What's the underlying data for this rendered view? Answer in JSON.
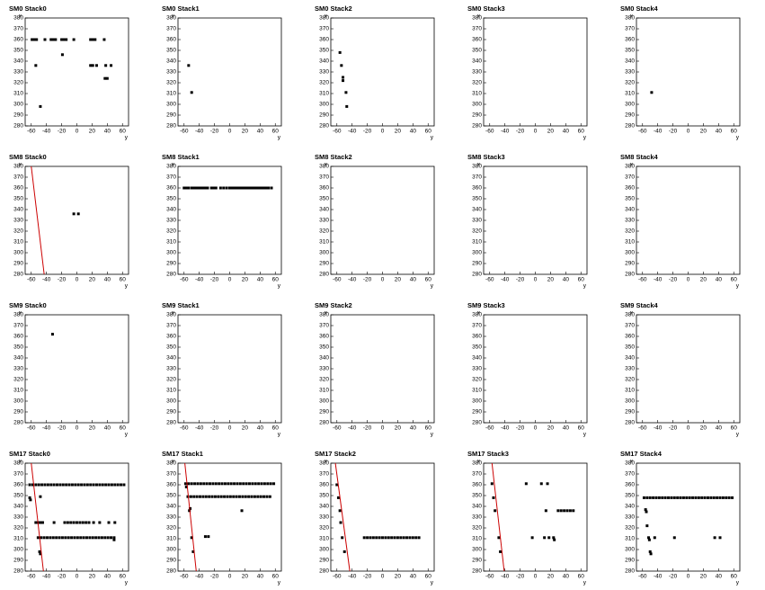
{
  "chart_data": [
    {
      "type": "scatter",
      "title": "SM0 Stack0",
      "x_label": "y",
      "y_label": "x",
      "xlim": [
        -68,
        68
      ],
      "ylim": [
        280,
        380
      ],
      "xticks": [
        -60,
        -40,
        -20,
        0,
        20,
        40,
        60
      ],
      "yticks": [
        280,
        290,
        300,
        310,
        320,
        330,
        340,
        350,
        360,
        370,
        380
      ],
      "color": "#000000",
      "x": [
        -59,
        -56,
        -53,
        -42,
        -34,
        -31,
        -28,
        -20,
        -17,
        -14,
        -4,
        18,
        21,
        24,
        36,
        -19,
        -54,
        18,
        21,
        26,
        38,
        45,
        37,
        40,
        -48
      ],
      "y": [
        360,
        360,
        360,
        360,
        360,
        360,
        360,
        360,
        360,
        360,
        360,
        360,
        360,
        360,
        360,
        346,
        336,
        336,
        336,
        336,
        336,
        336,
        324,
        324,
        298
      ]
    },
    {
      "type": "scatter",
      "title": "SM0 Stack1",
      "x_label": "y",
      "y_label": "x",
      "xlim": [
        -68,
        68
      ],
      "ylim": [
        280,
        380
      ],
      "xticks": [
        -60,
        -40,
        -20,
        0,
        20,
        40,
        60
      ],
      "yticks": [
        280,
        290,
        300,
        310,
        320,
        330,
        340,
        350,
        360,
        370,
        380
      ],
      "color": "#000000",
      "x": [
        -54,
        -50
      ],
      "y": [
        336,
        311
      ]
    },
    {
      "type": "scatter",
      "title": "SM0 Stack2",
      "x_label": "y",
      "y_label": "x",
      "xlim": [
        -68,
        68
      ],
      "ylim": [
        280,
        380
      ],
      "xticks": [
        -60,
        -40,
        -20,
        0,
        20,
        40,
        60
      ],
      "yticks": [
        280,
        290,
        300,
        310,
        320,
        330,
        340,
        350,
        360,
        370,
        380
      ],
      "color": "#000000",
      "x": [
        -56,
        -54,
        -52,
        -52,
        -48,
        -47
      ],
      "y": [
        348,
        336,
        325,
        322,
        311,
        298
      ]
    },
    {
      "type": "scatter",
      "title": "SM0 Stack3",
      "x_label": "y",
      "y_label": "x",
      "xlim": [
        -68,
        68
      ],
      "ylim": [
        280,
        380
      ],
      "xticks": [
        -60,
        -40,
        -20,
        0,
        20,
        40,
        60
      ],
      "yticks": [
        280,
        290,
        300,
        310,
        320,
        330,
        340,
        350,
        360,
        370,
        380
      ],
      "color": "#000000",
      "x": [],
      "y": []
    },
    {
      "type": "scatter",
      "title": "SM0 Stack4",
      "x_label": "y",
      "y_label": "x",
      "xlim": [
        -68,
        68
      ],
      "ylim": [
        280,
        380
      ],
      "xticks": [
        -60,
        -40,
        -20,
        0,
        20,
        40,
        60
      ],
      "yticks": [
        280,
        290,
        300,
        310,
        320,
        330,
        340,
        350,
        360,
        370,
        380
      ],
      "color": "#000000",
      "x": [
        -48
      ],
      "y": [
        311
      ]
    },
    {
      "type": "scatter",
      "title": "SM8 Stack0",
      "x_label": "y",
      "y_label": "x",
      "xlim": [
        -68,
        68
      ],
      "ylim": [
        280,
        380
      ],
      "xticks": [
        -60,
        -40,
        -20,
        0,
        20,
        40,
        60
      ],
      "yticks": [
        280,
        290,
        300,
        310,
        320,
        330,
        340,
        350,
        360,
        370,
        380
      ],
      "color": "#000000",
      "x": [
        -4,
        2
      ],
      "y": [
        336,
        336
      ],
      "fit": {
        "x": [
          -60,
          -43
        ],
        "y": [
          380,
          280
        ],
        "color": "#cc0000"
      }
    },
    {
      "type": "scatter",
      "title": "SM8 Stack1",
      "x_label": "y",
      "y_label": "x",
      "xlim": [
        -68,
        68
      ],
      "ylim": [
        280,
        380
      ],
      "xticks": [
        -60,
        -40,
        -20,
        0,
        20,
        40,
        60
      ],
      "yticks": [
        280,
        290,
        300,
        310,
        320,
        330,
        340,
        350,
        360,
        370,
        380
      ],
      "color": "#000000",
      "x": [
        -60,
        -57,
        -54,
        -50,
        -47,
        -44,
        -41,
        -38,
        -35,
        -32,
        -29,
        -24,
        -21,
        -18,
        -12,
        -8,
        -4,
        0,
        3,
        6,
        9,
        12,
        15,
        18,
        21,
        24,
        27,
        30,
        33,
        36,
        39,
        42,
        45,
        48,
        51,
        55
      ],
      "y": [
        360,
        360,
        360,
        360,
        360,
        360,
        360,
        360,
        360,
        360,
        360,
        360,
        360,
        360,
        360,
        360,
        360,
        360,
        360,
        360,
        360,
        360,
        360,
        360,
        360,
        360,
        360,
        360,
        360,
        360,
        360,
        360,
        360,
        360,
        360,
        360
      ]
    },
    {
      "type": "scatter",
      "title": "SM8 Stack2",
      "x_label": "y",
      "y_label": "x",
      "xlim": [
        -68,
        68
      ],
      "ylim": [
        280,
        380
      ],
      "xticks": [
        -60,
        -40,
        -20,
        0,
        20,
        40,
        60
      ],
      "yticks": [
        280,
        290,
        300,
        310,
        320,
        330,
        340,
        350,
        360,
        370,
        380
      ],
      "color": "#000000",
      "x": [],
      "y": []
    },
    {
      "type": "scatter",
      "title": "SM8 Stack3",
      "x_label": "y",
      "y_label": "x",
      "xlim": [
        -68,
        68
      ],
      "ylim": [
        280,
        380
      ],
      "xticks": [
        -60,
        -40,
        -20,
        0,
        20,
        40,
        60
      ],
      "yticks": [
        280,
        290,
        300,
        310,
        320,
        330,
        340,
        350,
        360,
        370,
        380
      ],
      "color": "#000000",
      "x": [],
      "y": []
    },
    {
      "type": "scatter",
      "title": "SM8 Stack4",
      "x_label": "y",
      "y_label": "x",
      "xlim": [
        -68,
        68
      ],
      "ylim": [
        280,
        380
      ],
      "xticks": [
        -60,
        -40,
        -20,
        0,
        20,
        40,
        60
      ],
      "yticks": [
        280,
        290,
        300,
        310,
        320,
        330,
        340,
        350,
        360,
        370,
        380
      ],
      "color": "#000000",
      "x": [],
      "y": []
    },
    {
      "type": "scatter",
      "title": "SM9 Stack0",
      "x_label": "y",
      "y_label": "x",
      "xlim": [
        -68,
        68
      ],
      "ylim": [
        280,
        380
      ],
      "xticks": [
        -60,
        -40,
        -20,
        0,
        20,
        40,
        60
      ],
      "yticks": [
        280,
        290,
        300,
        310,
        320,
        330,
        340,
        350,
        360,
        370,
        380
      ],
      "color": "#000000",
      "x": [
        -32
      ],
      "y": [
        362
      ]
    },
    {
      "type": "scatter",
      "title": "SM9 Stack1",
      "x_label": "y",
      "y_label": "x",
      "xlim": [
        -68,
        68
      ],
      "ylim": [
        280,
        380
      ],
      "xticks": [
        -60,
        -40,
        -20,
        0,
        20,
        40,
        60
      ],
      "yticks": [
        280,
        290,
        300,
        310,
        320,
        330,
        340,
        350,
        360,
        370,
        380
      ],
      "color": "#000000",
      "x": [],
      "y": []
    },
    {
      "type": "scatter",
      "title": "SM9 Stack2",
      "x_label": "y",
      "y_label": "x",
      "xlim": [
        -68,
        68
      ],
      "ylim": [
        280,
        380
      ],
      "xticks": [
        -60,
        -40,
        -20,
        0,
        20,
        40,
        60
      ],
      "yticks": [
        280,
        290,
        300,
        310,
        320,
        330,
        340,
        350,
        360,
        370,
        380
      ],
      "color": "#000000",
      "x": [],
      "y": []
    },
    {
      "type": "scatter",
      "title": "SM9 Stack3",
      "x_label": "y",
      "y_label": "x",
      "xlim": [
        -68,
        68
      ],
      "ylim": [
        280,
        380
      ],
      "xticks": [
        -60,
        -40,
        -20,
        0,
        20,
        40,
        60
      ],
      "yticks": [
        280,
        290,
        300,
        310,
        320,
        330,
        340,
        350,
        360,
        370,
        380
      ],
      "color": "#000000",
      "x": [],
      "y": []
    },
    {
      "type": "scatter",
      "title": "SM9 Stack4",
      "x_label": "y",
      "y_label": "x",
      "xlim": [
        -68,
        68
      ],
      "ylim": [
        280,
        380
      ],
      "xticks": [
        -60,
        -40,
        -20,
        0,
        20,
        40,
        60
      ],
      "yticks": [
        280,
        290,
        300,
        310,
        320,
        330,
        340,
        350,
        360,
        370,
        380
      ],
      "color": "#000000",
      "x": [],
      "y": []
    },
    {
      "type": "scatter",
      "title": "SM17 Stack0",
      "x_label": "y",
      "y_label": "x",
      "xlim": [
        -68,
        68
      ],
      "ylim": [
        280,
        380
      ],
      "xticks": [
        -60,
        -40,
        -20,
        0,
        20,
        40,
        60
      ],
      "yticks": [
        280,
        290,
        300,
        310,
        320,
        330,
        340,
        350,
        360,
        370,
        380
      ],
      "color": "#000000",
      "x": [
        -62,
        -58,
        -54,
        -50,
        -46,
        -42,
        -38,
        -34,
        -30,
        -26,
        -22,
        -18,
        -14,
        -10,
        -6,
        -2,
        2,
        6,
        10,
        14,
        18,
        22,
        26,
        30,
        34,
        38,
        42,
        46,
        50,
        54,
        58,
        62,
        -62,
        -61,
        -48,
        -54,
        -51,
        -48,
        -45,
        -30,
        -16,
        -12,
        -8,
        -4,
        0,
        4,
        8,
        12,
        16,
        22,
        30,
        42,
        50,
        -51,
        -47,
        -43,
        -39,
        -35,
        -31,
        -27,
        -23,
        -19,
        -15,
        -11,
        -7,
        -3,
        1,
        5,
        9,
        13,
        17,
        21,
        25,
        29,
        33,
        37,
        41,
        45,
        49,
        49,
        -49,
        -48
      ],
      "y": [
        360,
        360,
        360,
        360,
        360,
        360,
        360,
        360,
        360,
        360,
        360,
        360,
        360,
        360,
        360,
        360,
        360,
        360,
        360,
        360,
        360,
        360,
        360,
        360,
        360,
        360,
        360,
        360,
        360,
        360,
        360,
        360,
        348,
        346,
        349,
        325,
        325,
        325,
        325,
        325,
        325,
        325,
        325,
        325,
        325,
        325,
        325,
        325,
        325,
        325,
        325,
        325,
        325,
        311,
        311,
        311,
        311,
        311,
        311,
        311,
        311,
        311,
        311,
        311,
        311,
        311,
        311,
        311,
        311,
        311,
        311,
        311,
        311,
        311,
        311,
        311,
        311,
        311,
        311,
        309,
        298,
        296
      ],
      "fit": {
        "x": [
          -60,
          -44
        ],
        "y": [
          380,
          280
        ],
        "color": "#cc0000"
      }
    },
    {
      "type": "scatter",
      "title": "SM17 Stack1",
      "x_label": "y",
      "y_label": "x",
      "xlim": [
        -68,
        68
      ],
      "ylim": [
        280,
        380
      ],
      "xticks": [
        -60,
        -40,
        -20,
        0,
        20,
        40,
        60
      ],
      "yticks": [
        280,
        290,
        300,
        310,
        320,
        330,
        340,
        350,
        360,
        370,
        380
      ],
      "color": "#000000",
      "x": [
        -58,
        -54,
        -50,
        -46,
        -42,
        -38,
        -34,
        -30,
        -26,
        -22,
        -18,
        -14,
        -10,
        -6,
        -2,
        2,
        6,
        10,
        14,
        18,
        22,
        26,
        30,
        34,
        38,
        42,
        46,
        50,
        54,
        58,
        -55,
        -51,
        -47,
        -43,
        -39,
        -35,
        -31,
        -27,
        -23,
        -19,
        -15,
        -11,
        -7,
        -3,
        1,
        5,
        9,
        13,
        17,
        21,
        25,
        29,
        33,
        37,
        41,
        45,
        49,
        53,
        -57,
        -53,
        -52,
        -50,
        -48,
        -32,
        -28,
        16
      ],
      "y": [
        361,
        361,
        361,
        361,
        361,
        361,
        361,
        361,
        361,
        361,
        361,
        361,
        361,
        361,
        361,
        361,
        361,
        361,
        361,
        361,
        361,
        361,
        361,
        361,
        361,
        361,
        361,
        361,
        361,
        361,
        349,
        349,
        349,
        349,
        349,
        349,
        349,
        349,
        349,
        349,
        349,
        349,
        349,
        349,
        349,
        349,
        349,
        349,
        349,
        349,
        349,
        349,
        349,
        349,
        349,
        349,
        349,
        349,
        358,
        336,
        338,
        311,
        298,
        312,
        312,
        336
      ],
      "fit": {
        "x": [
          -59,
          -44
        ],
        "y": [
          380,
          280
        ],
        "color": "#cc0000"
      }
    },
    {
      "type": "scatter",
      "title": "SM17 Stack2",
      "x_label": "y",
      "y_label": "x",
      "xlim": [
        -68,
        68
      ],
      "ylim": [
        280,
        380
      ],
      "xticks": [
        -60,
        -40,
        -20,
        0,
        20,
        40,
        60
      ],
      "yticks": [
        280,
        290,
        300,
        310,
        320,
        330,
        340,
        350,
        360,
        370,
        380
      ],
      "color": "#000000",
      "x": [
        -24,
        -20,
        -16,
        -12,
        -8,
        -4,
        0,
        4,
        8,
        12,
        16,
        20,
        24,
        28,
        32,
        36,
        40,
        44,
        48,
        -60,
        -58,
        -56,
        -55,
        -53,
        -50
      ],
      "y": [
        311,
        311,
        311,
        311,
        311,
        311,
        311,
        311,
        311,
        311,
        311,
        311,
        311,
        311,
        311,
        311,
        311,
        311,
        311,
        360,
        348,
        336,
        325,
        311,
        298
      ],
      "fit": {
        "x": [
          -62,
          -43
        ],
        "y": [
          380,
          280
        ],
        "color": "#cc0000"
      }
    },
    {
      "type": "scatter",
      "title": "SM17 Stack3",
      "x_label": "y",
      "y_label": "x",
      "xlim": [
        -68,
        68
      ],
      "ylim": [
        280,
        380
      ],
      "xticks": [
        -60,
        -40,
        -20,
        0,
        20,
        40,
        60
      ],
      "yticks": [
        280,
        290,
        300,
        310,
        320,
        330,
        340,
        350,
        360,
        370,
        380
      ],
      "color": "#000000",
      "x": [
        -57,
        -55,
        -53,
        -48,
        -46,
        -12,
        8,
        16,
        14,
        -4,
        12,
        18,
        24,
        25,
        30,
        34,
        38,
        42,
        46,
        50
      ],
      "y": [
        361,
        348,
        336,
        311,
        298,
        361,
        361,
        361,
        336,
        311,
        311,
        311,
        311,
        309,
        336,
        336,
        336,
        336,
        336,
        336
      ],
      "fit": {
        "x": [
          -57,
          -41
        ],
        "y": [
          380,
          280
        ],
        "color": "#cc0000"
      }
    },
    {
      "type": "scatter",
      "title": "SM17 Stack4",
      "x_label": "y",
      "y_label": "x",
      "xlim": [
        -68,
        68
      ],
      "ylim": [
        280,
        380
      ],
      "xticks": [
        -60,
        -40,
        -20,
        0,
        20,
        40,
        60
      ],
      "yticks": [
        280,
        290,
        300,
        310,
        320,
        330,
        340,
        350,
        360,
        370,
        380
      ],
      "color": "#000000",
      "x": [
        -58,
        -54,
        -50,
        -46,
        -42,
        -38,
        -34,
        -30,
        -26,
        -22,
        -18,
        -14,
        -10,
        -6,
        -2,
        2,
        6,
        10,
        14,
        18,
        22,
        26,
        30,
        34,
        38,
        42,
        46,
        50,
        54,
        58,
        -56,
        -55,
        -54,
        -52,
        -51,
        -50,
        -49,
        -44,
        -18,
        35,
        42
      ],
      "y": [
        348,
        348,
        348,
        348,
        348,
        348,
        348,
        348,
        348,
        348,
        348,
        348,
        348,
        348,
        348,
        348,
        348,
        348,
        348,
        348,
        348,
        348,
        348,
        348,
        348,
        348,
        348,
        348,
        348,
        348,
        337,
        335,
        322,
        311,
        309,
        298,
        296,
        311,
        311,
        311,
        311
      ]
    }
  ]
}
